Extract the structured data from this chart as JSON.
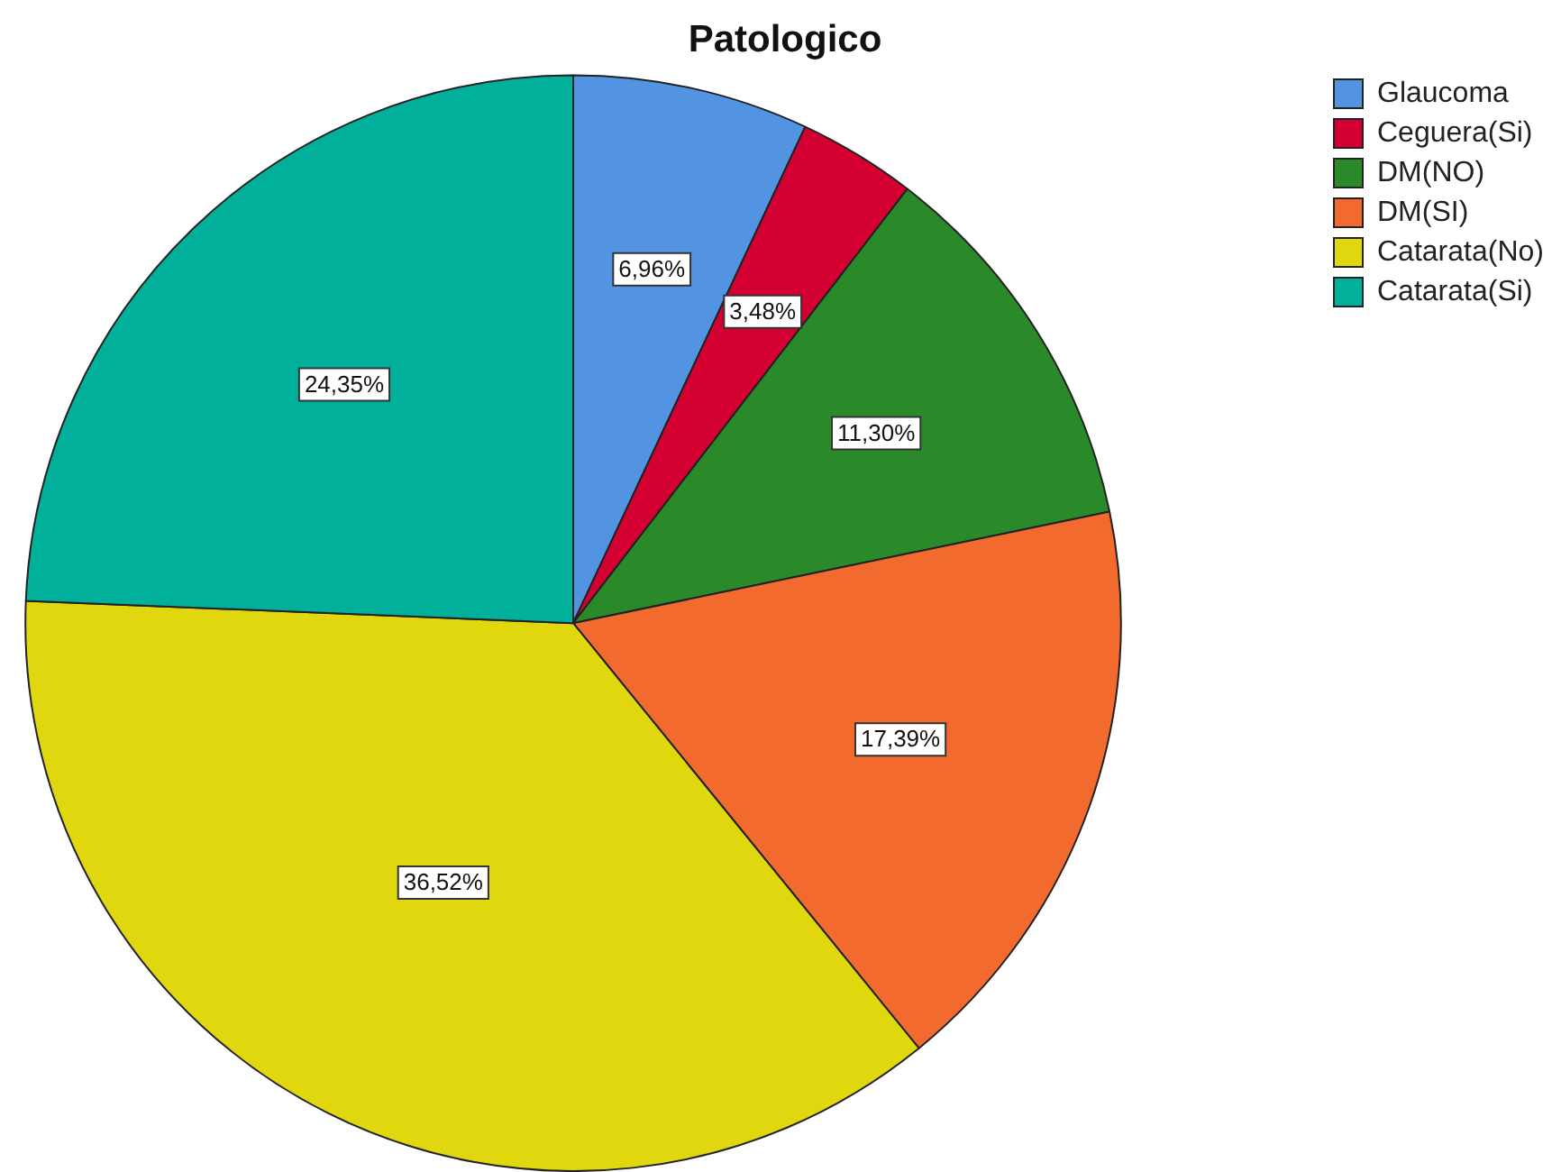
{
  "chart_data": {
    "type": "pie",
    "title": "Patologico",
    "categories": [
      "Glaucoma",
      "Ceguera(Si)",
      "DM(NO)",
      "DM(SI)",
      "Catarata(No)",
      "Catarata(Si)"
    ],
    "values": [
      6.96,
      3.48,
      11.3,
      17.39,
      36.52,
      24.35
    ],
    "colors": [
      "#5294e2",
      "#d50032",
      "#2a8a2a",
      "#f26a2d",
      "#e1d70f",
      "#00b09a"
    ],
    "value_labels": [
      "6,96%",
      "3,48%",
      "11,30%",
      "17,39%",
      "36,52%",
      "24,35%"
    ],
    "legend": "top right"
  }
}
